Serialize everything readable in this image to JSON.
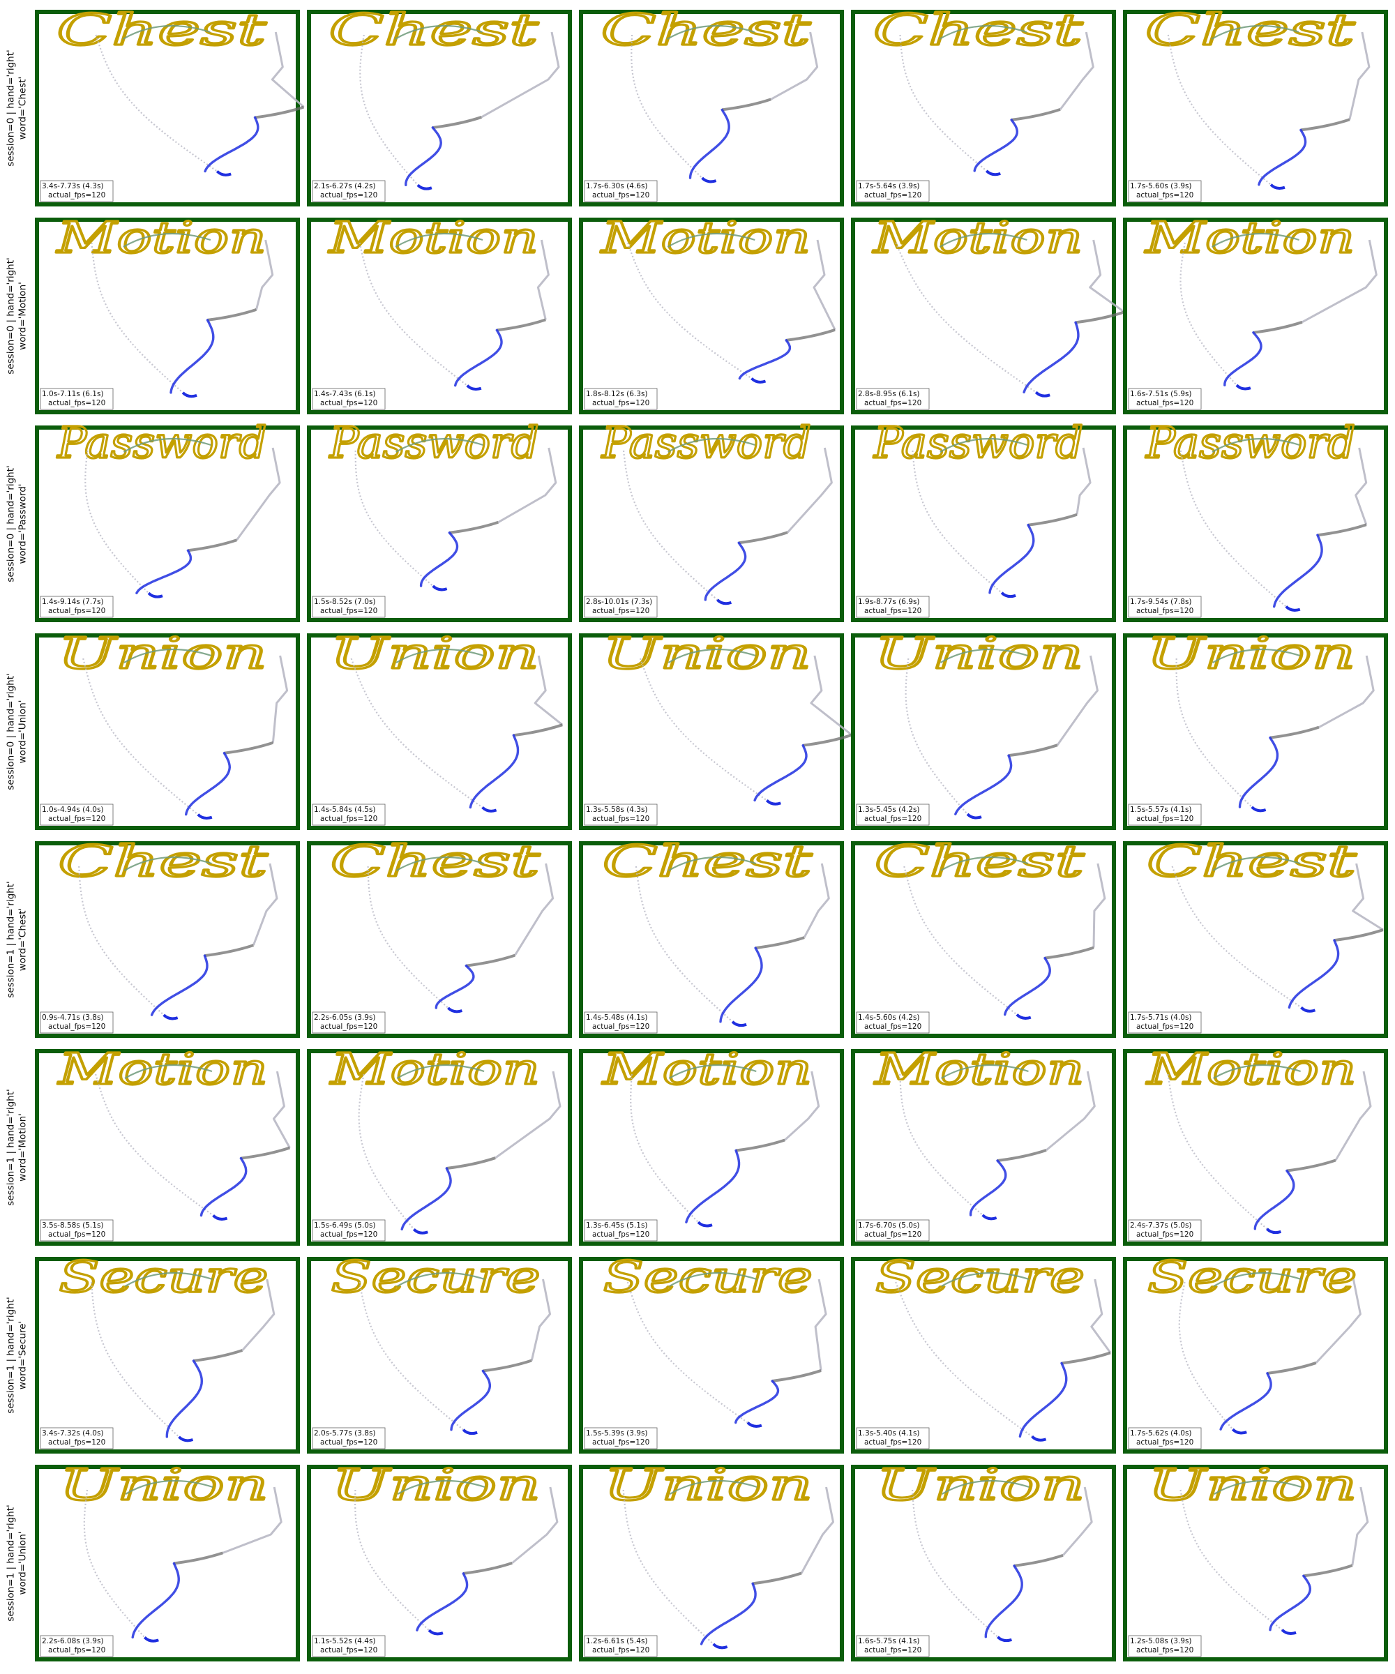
{
  "colors": {
    "panel_border": "#0b5d0b",
    "word_stroke": "#c4a000",
    "word_connector": "#6f9a7a",
    "approach_stroke": "#1f2fe0",
    "transition_stroke": "#6e6e6e",
    "travel_stroke": "#b8b8c4",
    "info_box_border": "#555555"
  },
  "chart_data": {
    "type": "trajectory-grid",
    "grid": {
      "rows": 8,
      "cols": 5
    },
    "rows": [
      {
        "label_line1": "session=0 | hand='right'",
        "label_line2": "word='Chest'",
        "word": "Chest",
        "panels": [
          {
            "time": "3.4s-7.73s (4.3s)",
            "fps": "actual_fps=120"
          },
          {
            "time": "2.1s-6.27s (4.2s)",
            "fps": "actual_fps=120"
          },
          {
            "time": "1.7s-6.30s (4.6s)",
            "fps": "actual_fps=120"
          },
          {
            "time": "1.7s-5.64s (3.9s)",
            "fps": "actual_fps=120"
          },
          {
            "time": "1.7s-5.60s (3.9s)",
            "fps": "actual_fps=120"
          }
        ]
      },
      {
        "label_line1": "session=0 | hand='right'",
        "label_line2": "word='Motion'",
        "word": "Motion",
        "panels": [
          {
            "time": "1.0s-7.11s (6.1s)",
            "fps": "actual_fps=120"
          },
          {
            "time": "1.4s-7.43s (6.1s)",
            "fps": "actual_fps=120"
          },
          {
            "time": "1.8s-8.12s (6.3s)",
            "fps": "actual_fps=120"
          },
          {
            "time": "2.8s-8.95s (6.1s)",
            "fps": "actual_fps=120"
          },
          {
            "time": "1.6s-7.51s (5.9s)",
            "fps": "actual_fps=120"
          }
        ]
      },
      {
        "label_line1": "session=0 | hand='right'",
        "label_line2": "word='Password'",
        "word": "Password",
        "panels": [
          {
            "time": "1.4s-9.14s (7.7s)",
            "fps": "actual_fps=120"
          },
          {
            "time": "1.5s-8.52s (7.0s)",
            "fps": "actual_fps=120"
          },
          {
            "time": "2.8s-10.01s (7.3s)",
            "fps": "actual_fps=120"
          },
          {
            "time": "1.9s-8.77s (6.9s)",
            "fps": "actual_fps=120"
          },
          {
            "time": "1.7s-9.54s (7.8s)",
            "fps": "actual_fps=120"
          }
        ]
      },
      {
        "label_line1": "session=0 | hand='right'",
        "label_line2": "word='Union'",
        "word": "Union",
        "panels": [
          {
            "time": "1.0s-4.94s (4.0s)",
            "fps": "actual_fps=120"
          },
          {
            "time": "1.4s-5.84s (4.5s)",
            "fps": "actual_fps=120"
          },
          {
            "time": "1.3s-5.58s (4.3s)",
            "fps": "actual_fps=120"
          },
          {
            "time": "1.3s-5.45s (4.2s)",
            "fps": "actual_fps=120"
          },
          {
            "time": "1.5s-5.57s (4.1s)",
            "fps": "actual_fps=120"
          }
        ]
      },
      {
        "label_line1": "session=1 | hand='right'",
        "label_line2": "word='Chest'",
        "word": "Chest",
        "panels": [
          {
            "time": "0.9s-4.71s (3.8s)",
            "fps": "actual_fps=120"
          },
          {
            "time": "2.2s-6.05s (3.9s)",
            "fps": "actual_fps=120"
          },
          {
            "time": "1.4s-5.48s (4.1s)",
            "fps": "actual_fps=120"
          },
          {
            "time": "1.4s-5.60s (4.2s)",
            "fps": "actual_fps=120"
          },
          {
            "time": "1.7s-5.71s (4.0s)",
            "fps": "actual_fps=120"
          }
        ]
      },
      {
        "label_line1": "session=1 | hand='right'",
        "label_line2": "word='Motion'",
        "word": "Motion",
        "panels": [
          {
            "time": "3.5s-8.58s (5.1s)",
            "fps": "actual_fps=120"
          },
          {
            "time": "1.5s-6.49s (5.0s)",
            "fps": "actual_fps=120"
          },
          {
            "time": "1.3s-6.45s (5.1s)",
            "fps": "actual_fps=120"
          },
          {
            "time": "1.7s-6.70s (5.0s)",
            "fps": "actual_fps=120"
          },
          {
            "time": "2.4s-7.37s (5.0s)",
            "fps": "actual_fps=120"
          }
        ]
      },
      {
        "label_line1": "session=1 | hand='right'",
        "label_line2": "word='Secure'",
        "word": "Secure",
        "panels": [
          {
            "time": "3.4s-7.32s (4.0s)",
            "fps": "actual_fps=120"
          },
          {
            "time": "2.0s-5.77s (3.8s)",
            "fps": "actual_fps=120"
          },
          {
            "time": "1.5s-5.39s (3.9s)",
            "fps": "actual_fps=120"
          },
          {
            "time": "1.3s-5.40s (4.1s)",
            "fps": "actual_fps=120"
          },
          {
            "time": "1.7s-5.62s (4.0s)",
            "fps": "actual_fps=120"
          }
        ]
      },
      {
        "label_line1": "session=1 | hand='right'",
        "label_line2": "word='Union'",
        "word": "Union",
        "panels": [
          {
            "time": "2.2s-6.08s (3.9s)",
            "fps": "actual_fps=120"
          },
          {
            "time": "1.1s-5.52s (4.4s)",
            "fps": "actual_fps=120"
          },
          {
            "time": "1.2s-6.61s (5.4s)",
            "fps": "actual_fps=120"
          },
          {
            "time": "1.6s-5.75s (4.1s)",
            "fps": "actual_fps=120"
          },
          {
            "time": "1.2s-5.08s (3.9s)",
            "fps": "actual_fps=120"
          }
        ]
      }
    ]
  }
}
